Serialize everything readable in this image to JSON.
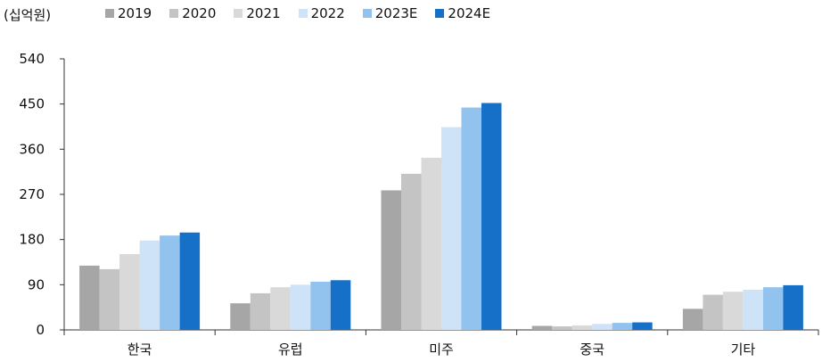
{
  "chart_data": {
    "type": "bar",
    "unit_label": "(십억원)",
    "categories": [
      "한국",
      "유럽",
      "미주",
      "중국",
      "기타"
    ],
    "series": [
      {
        "name": "2019",
        "color": "#a6a6a6",
        "values": [
          128,
          53,
          278,
          8,
          42
        ]
      },
      {
        "name": "2020",
        "color": "#c4c4c4",
        "values": [
          121,
          73,
          311,
          7,
          70
        ]
      },
      {
        "name": "2021",
        "color": "#d9d9d9",
        "values": [
          151,
          85,
          343,
          9,
          76
        ]
      },
      {
        "name": "2022",
        "color": "#cfe3f8",
        "values": [
          178,
          90,
          404,
          12,
          80
        ]
      },
      {
        "name": "2023E",
        "color": "#92c2ee",
        "values": [
          188,
          96,
          443,
          14,
          85
        ]
      },
      {
        "name": "2024E",
        "color": "#1670c7",
        "values": [
          194,
          99,
          452,
          15,
          89
        ]
      }
    ],
    "yticks": [
      0,
      90,
      180,
      270,
      360,
      450,
      540
    ],
    "ylim": [
      0,
      540
    ],
    "grid": false,
    "legend_position": "top"
  }
}
